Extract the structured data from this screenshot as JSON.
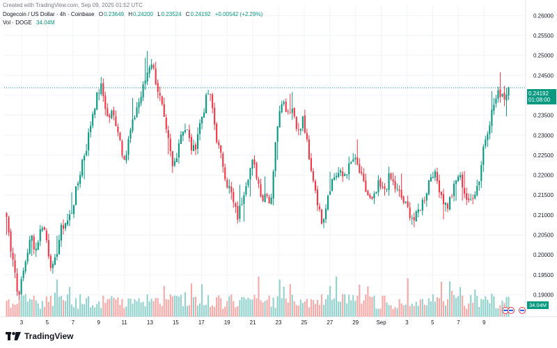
{
  "header": {
    "created": "Created with TradingView.com, Sep 09, 2025 01:52 UTC",
    "symbol": "Dogecoin / US Dollar · 4h · Coinbase",
    "o_label": "O",
    "o_value": "0.23649",
    "h_label": "H",
    "h_value": "0.24200",
    "l_label": "L",
    "l_value": "0.23524",
    "c_label": "C",
    "c_value": "0.24192",
    "change": "+0.00542 (+2.29%)",
    "vol_label": "Vol · DOGE",
    "vol_value": "34.04M"
  },
  "price_tag": {
    "price": "0.24192",
    "countdown": "01:08:00"
  },
  "volume_tag": "34.04M",
  "footer": {
    "brand": "TradingView"
  },
  "colors": {
    "up": "#089981",
    "down": "#f23645",
    "up_vol": "#92d2cc",
    "down_vol": "#f7a9a7"
  },
  "chart_data": {
    "type": "candlestick",
    "symbol": "DOGEUSD",
    "interval": "4h",
    "y_ticks": [
      "0.26000",
      "0.25500",
      "0.25000",
      "0.24500",
      "0.24000",
      "0.23500",
      "0.23000",
      "0.22500",
      "0.22000",
      "0.21500",
      "0.21000",
      "0.20500",
      "0.20000",
      "0.19500",
      "0.19000"
    ],
    "ylim": [
      0.1845,
      0.2625
    ],
    "x_ticks": [
      "3",
      "5",
      "7",
      "9",
      "11",
      "13",
      "15",
      "17",
      "19",
      "21",
      "23",
      "25",
      "27",
      "29",
      "Sep",
      "3",
      "5",
      "7",
      "9"
    ],
    "last_price": 0.24192,
    "anchors": [
      [
        0,
        0.2095
      ],
      [
        1,
        0.2025
      ],
      [
        2,
        0.1985
      ],
      [
        3,
        0.19
      ],
      [
        4,
        0.1925
      ],
      [
        5,
        0.1975
      ],
      [
        6,
        0.202
      ],
      [
        7,
        0.2045
      ],
      [
        8,
        0.201
      ],
      [
        9,
        0.205
      ],
      [
        10,
        0.208
      ],
      [
        11,
        0.204
      ],
      [
        12,
        0.1985
      ],
      [
        13,
        0.196
      ],
      [
        14,
        0.2015
      ],
      [
        15,
        0.206
      ],
      [
        16,
        0.208
      ],
      [
        17,
        0.2085
      ],
      [
        18,
        0.211
      ],
      [
        19,
        0.215
      ],
      [
        20,
        0.219
      ],
      [
        21,
        0.224
      ],
      [
        22,
        0.2265
      ],
      [
        23,
        0.2315
      ],
      [
        24,
        0.2365
      ],
      [
        25,
        0.2395
      ],
      [
        26,
        0.2425
      ],
      [
        27,
        0.239
      ],
      [
        28,
        0.234
      ],
      [
        29,
        0.2355
      ],
      [
        30,
        0.234
      ],
      [
        31,
        0.231
      ],
      [
        32,
        0.226
      ],
      [
        33,
        0.2245
      ],
      [
        34,
        0.23
      ],
      [
        35,
        0.233
      ],
      [
        36,
        0.237
      ],
      [
        37,
        0.239
      ],
      [
        38,
        0.2425
      ],
      [
        39,
        0.246
      ],
      [
        40,
        0.249
      ],
      [
        41,
        0.245
      ],
      [
        42,
        0.241
      ],
      [
        43,
        0.237
      ],
      [
        44,
        0.231
      ],
      [
        45,
        0.2275
      ],
      [
        46,
        0.2215
      ],
      [
        47,
        0.225
      ],
      [
        48,
        0.23
      ],
      [
        49,
        0.232
      ],
      [
        50,
        0.231
      ],
      [
        51,
        0.227
      ],
      [
        52,
        0.226
      ],
      [
        53,
        0.231
      ],
      [
        54,
        0.2345
      ],
      [
        55,
        0.238
      ],
      [
        56,
        0.241
      ],
      [
        57,
        0.2365
      ],
      [
        58,
        0.23
      ],
      [
        59,
        0.2255
      ],
      [
        60,
        0.2225
      ],
      [
        61,
        0.218
      ],
      [
        62,
        0.216
      ],
      [
        63,
        0.212
      ],
      [
        64,
        0.2095
      ],
      [
        65,
        0.213
      ],
      [
        66,
        0.2175
      ],
      [
        67,
        0.2205
      ],
      [
        68,
        0.223
      ],
      [
        69,
        0.221
      ],
      [
        70,
        0.217
      ],
      [
        71,
        0.214
      ],
      [
        72,
        0.2165
      ],
      [
        73,
        0.212
      ],
      [
        74,
        0.223
      ],
      [
        75,
        0.233
      ],
      [
        76,
        0.2395
      ],
      [
        77,
        0.2375
      ],
      [
        78,
        0.236
      ],
      [
        79,
        0.237
      ],
      [
        80,
        0.234
      ],
      [
        81,
        0.23
      ],
      [
        82,
        0.234
      ],
      [
        83,
        0.229
      ],
      [
        84,
        0.2215
      ],
      [
        85,
        0.219
      ],
      [
        86,
        0.214
      ],
      [
        87,
        0.2085
      ],
      [
        88,
        0.2105
      ],
      [
        89,
        0.2155
      ],
      [
        90,
        0.2185
      ],
      [
        91,
        0.22
      ],
      [
        92,
        0.2205
      ],
      [
        93,
        0.2195
      ],
      [
        94,
        0.221
      ],
      [
        95,
        0.222
      ],
      [
        96,
        0.224
      ],
      [
        97,
        0.2225
      ],
      [
        98,
        0.22
      ],
      [
        99,
        0.217
      ],
      [
        100,
        0.215
      ],
      [
        101,
        0.213
      ],
      [
        102,
        0.2145
      ],
      [
        103,
        0.2175
      ],
      [
        104,
        0.216
      ],
      [
        105,
        0.217
      ],
      [
        106,
        0.2195
      ],
      [
        107,
        0.218
      ],
      [
        108,
        0.216
      ],
      [
        109,
        0.215
      ],
      [
        110,
        0.213
      ],
      [
        111,
        0.2115
      ],
      [
        112,
        0.21
      ],
      [
        113,
        0.2085
      ],
      [
        114,
        0.211
      ],
      [
        115,
        0.213
      ],
      [
        116,
        0.215
      ],
      [
        117,
        0.219
      ],
      [
        118,
        0.221
      ],
      [
        119,
        0.219
      ],
      [
        120,
        0.2165
      ],
      [
        121,
        0.2135
      ],
      [
        122,
        0.212
      ],
      [
        123,
        0.2145
      ],
      [
        124,
        0.217
      ],
      [
        125,
        0.22
      ],
      [
        126,
        0.2185
      ],
      [
        127,
        0.215
      ],
      [
        128,
        0.2125
      ],
      [
        129,
        0.215
      ],
      [
        130,
        0.2165
      ],
      [
        131,
        0.2195
      ],
      [
        132,
        0.227
      ],
      [
        133,
        0.231
      ],
      [
        134,
        0.2345
      ],
      [
        135,
        0.238
      ],
      [
        136,
        0.24
      ],
      [
        137,
        0.241
      ],
      [
        138,
        0.2395
      ],
      [
        139,
        0.2419
      ]
    ],
    "volume_range": [
      0,
      0.2
    ]
  }
}
